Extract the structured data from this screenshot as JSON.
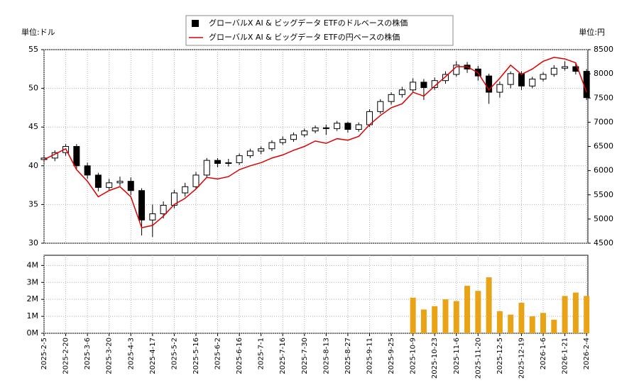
{
  "chart_data": [
    {
      "type": "candlestick",
      "y_unit_label": "単位:ドル",
      "y2_unit_label": "単位:円",
      "legend": "top",
      "grid": true,
      "x": [
        0,
        5,
        10,
        15,
        20,
        25,
        30,
        35,
        40,
        45,
        50,
        55,
        60,
        65,
        70,
        75,
        80,
        85,
        90,
        95,
        100,
        105,
        110,
        115,
        120,
        125,
        130,
        135,
        140,
        145,
        150,
        155,
        160,
        165,
        170,
        175,
        180,
        185,
        190,
        195,
        200,
        205,
        210,
        215,
        220,
        225,
        230,
        235,
        240,
        245,
        250
      ],
      "ylim": [
        30,
        55
      ],
      "yticks": [
        30,
        35,
        40,
        45,
        50,
        55
      ],
      "y2lim": [
        4500,
        8500
      ],
      "y2ticks": [
        4500,
        5000,
        5500,
        6000,
        6500,
        7000,
        7500,
        8000,
        8500
      ],
      "series": [
        {
          "name": "グローバルX AI & ビッグデータ ETFのドルベースの株価",
          "color": "#000000",
          "open": [
            40.8,
            41.0,
            41.7,
            42.5,
            40.0,
            38.8,
            37.2,
            37.8,
            38.0,
            36.8,
            33.0,
            33.8,
            34.9,
            36.5,
            37.3,
            38.8,
            40.7,
            40.3,
            40.4,
            41.3,
            41.9,
            42.2,
            43.0,
            43.4,
            44.0,
            44.5,
            44.9,
            44.8,
            45.5,
            44.7,
            45.3,
            47.0,
            48.3,
            49.2,
            49.8,
            50.8,
            50.1,
            51.0,
            51.8,
            53.0,
            52.5,
            51.6,
            49.5,
            50.5,
            51.9,
            50.3,
            51.2,
            51.8,
            52.6,
            52.8,
            52.2
          ],
          "high": [
            41.3,
            42.0,
            42.8,
            42.8,
            40.4,
            39.1,
            38.3,
            38.6,
            38.5,
            37.1,
            35.0,
            35.4,
            36.9,
            37.8,
            39.2,
            41.0,
            41.0,
            40.9,
            41.6,
            42.2,
            42.5,
            43.3,
            43.8,
            44.3,
            44.8,
            45.2,
            45.3,
            45.8,
            45.7,
            45.6,
            47.3,
            48.6,
            49.5,
            50.2,
            51.3,
            51.2,
            51.4,
            52.2,
            53.5,
            53.4,
            52.9,
            51.9,
            50.9,
            52.2,
            52.2,
            51.5,
            52.1,
            53.0,
            53.5,
            53.3,
            52.5
          ],
          "low": [
            40.4,
            40.6,
            41.3,
            39.6,
            38.3,
            36.7,
            36.8,
            37.4,
            36.2,
            31.0,
            30.8,
            33.2,
            34.5,
            36.0,
            37.0,
            38.5,
            39.8,
            39.9,
            40.1,
            41.0,
            41.5,
            41.9,
            42.7,
            43.1,
            43.7,
            44.2,
            44.0,
            44.5,
            44.3,
            44.4,
            45.0,
            46.7,
            47.9,
            48.8,
            49.5,
            48.5,
            49.8,
            50.6,
            51.5,
            52.0,
            51.0,
            48.0,
            48.8,
            50.0,
            49.8,
            50.0,
            50.9,
            51.5,
            52.3,
            51.8,
            48.5
          ],
          "close": [
            41.0,
            41.7,
            42.5,
            40.0,
            38.8,
            37.2,
            37.8,
            38.0,
            36.8,
            33.0,
            33.8,
            34.9,
            36.5,
            37.3,
            38.8,
            40.7,
            40.3,
            40.4,
            41.3,
            41.9,
            42.2,
            43.0,
            43.4,
            44.0,
            44.5,
            44.9,
            44.8,
            45.5,
            44.7,
            45.3,
            47.0,
            48.3,
            49.2,
            49.8,
            50.8,
            50.1,
            51.0,
            51.8,
            53.0,
            52.5,
            51.6,
            49.5,
            50.5,
            51.9,
            50.3,
            51.2,
            51.8,
            52.6,
            52.8,
            52.2,
            48.8
          ]
        },
        {
          "name": "グローバルX AI & ビッグデータ ETFの円ベースの株価",
          "color": "#dd0000",
          "axis": "y2",
          "values": [
            6228,
            6340,
            6452,
            6020,
            5780,
            5460,
            5588,
            5668,
            5460,
            4820,
            4868,
            5060,
            5300,
            5428,
            5620,
            5860,
            5828,
            5876,
            6020,
            6100,
            6164,
            6260,
            6324,
            6420,
            6500,
            6612,
            6564,
            6660,
            6628,
            6708,
            6948,
            7140,
            7300,
            7380,
            7620,
            7540,
            7748,
            7940,
            8148,
            8148,
            8020,
            7668,
            7908,
            8180,
            7988,
            8100,
            8260,
            8340,
            8308,
            8228,
            7620
          ]
        }
      ]
    },
    {
      "type": "bar",
      "color": "#e8a317",
      "grid": true,
      "xlim": [
        0,
        250.6
      ],
      "xticks": [
        {
          "value": 0,
          "label": "2025-2-5"
        },
        {
          "value": 10,
          "label": "2025-2-20"
        },
        {
          "value": 20,
          "label": "2025-3-6"
        },
        {
          "value": 30,
          "label": "2025-3-20"
        },
        {
          "value": 40,
          "label": "2025-4-3"
        },
        {
          "value": 50,
          "label": "2025-4-17"
        },
        {
          "value": 60,
          "label": "2025-5-2"
        },
        {
          "value": 70,
          "label": "2025-5-16"
        },
        {
          "value": 80,
          "label": "2025-6-2"
        },
        {
          "value": 90,
          "label": "2025-6-16"
        },
        {
          "value": 100,
          "label": "2025-7-1"
        },
        {
          "value": 110,
          "label": "2025-7-16"
        },
        {
          "value": 120,
          "label": "2025-7-30"
        },
        {
          "value": 130,
          "label": "2025-8-13"
        },
        {
          "value": 140,
          "label": "2025-8-27"
        },
        {
          "value": 150,
          "label": "2025-9-11"
        },
        {
          "value": 160,
          "label": "2025-9-25"
        },
        {
          "value": 170,
          "label": "2025-10-9"
        },
        {
          "value": 180,
          "label": "2025-10-23"
        },
        {
          "value": 190,
          "label": "2025-11-6"
        },
        {
          "value": 200,
          "label": "2025-11-20"
        },
        {
          "value": 210,
          "label": "2025-12-5"
        },
        {
          "value": 220,
          "label": "2025-12-19"
        },
        {
          "value": 230,
          "label": "2026-1-6"
        },
        {
          "value": 240,
          "label": "2026-1-21"
        },
        {
          "value": 250,
          "label": "2026-2-4"
        }
      ],
      "ylim": [
        0,
        4600000
      ],
      "yticks": [
        {
          "value": 0,
          "label": "0M"
        },
        {
          "value": 1000000,
          "label": "1M"
        },
        {
          "value": 2000000,
          "label": "2M"
        },
        {
          "value": 3000000,
          "label": "3M"
        },
        {
          "value": 4000000,
          "label": "4M"
        }
      ],
      "values": [
        null,
        null,
        null,
        null,
        null,
        null,
        null,
        null,
        null,
        null,
        null,
        null,
        null,
        null,
        null,
        null,
        null,
        null,
        null,
        null,
        null,
        null,
        null,
        null,
        null,
        null,
        null,
        null,
        null,
        null,
        null,
        null,
        null,
        null,
        2100000,
        1400000,
        1600000,
        2000000,
        1900000,
        2800000,
        2500000,
        3300000,
        1300000,
        1100000,
        1800000,
        1000000,
        1200000,
        800000,
        2200000,
        2400000,
        2200000
      ]
    }
  ]
}
